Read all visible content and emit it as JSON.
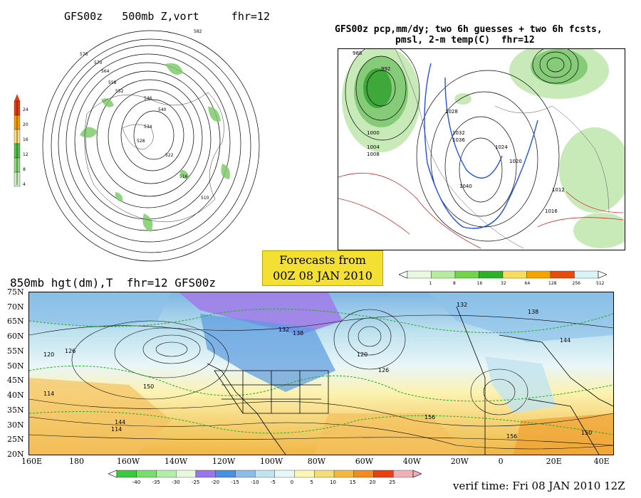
{
  "panels": {
    "top_left": {
      "title": "GFS00z   500mb Z,vort     fhr=12",
      "legend_ticks": [
        "24",
        "20",
        "16",
        "12",
        "8",
        "4"
      ],
      "legend_colors": [
        "#e04010",
        "#f4a000",
        "#f6dd80",
        "#56c24a",
        "#8fd980",
        "#c9ecc0"
      ],
      "contour_labels": [
        "582",
        "576",
        "570",
        "564",
        "558",
        "552",
        "546",
        "540",
        "534",
        "528",
        "522",
        "516",
        "510"
      ]
    },
    "top_right": {
      "title_line1": "GFS00z pcp,mm/dy; two 6h guesses + two 6h fcsts,",
      "title_line2": "pmsl, 2-m temp(C)  fhr=12",
      "legend_ticks": [
        "1",
        "8",
        "16",
        "32",
        "64",
        "128",
        "256",
        "512"
      ],
      "legend_colors": [
        "#e9f8e0",
        "#b8eba0",
        "#72d44e",
        "#2fb02a",
        "#f6dd60",
        "#f4a400",
        "#e84a10",
        "#d8f4f8"
      ],
      "pressure_labels": [
        "988",
        "992",
        "1000",
        "1004",
        "1008",
        "1012",
        "1016",
        "1020",
        "1024",
        "1028",
        "1032",
        "1036",
        "1040"
      ]
    },
    "forecast_box": {
      "line1": "Forecasts from",
      "line2": "00Z 08 JAN 2010"
    },
    "bottom": {
      "title": "850mb hgt(dm),T  fhr=12 GFS00z",
      "y_ticks": [
        "75N",
        "70N",
        "65N",
        "60N",
        "55N",
        "50N",
        "45N",
        "40N",
        "35N",
        "30N",
        "25N",
        "20N"
      ],
      "x_ticks": [
        "160E",
        "180",
        "160W",
        "140W",
        "120W",
        "100W",
        "80W",
        "60W",
        "40W",
        "20W",
        "0",
        "20E",
        "40E"
      ],
      "temp_legend_ticks": [
        "-40",
        "-35",
        "-30",
        "-25",
        "-20",
        "-15",
        "-10",
        "-5",
        "0",
        "5",
        "10",
        "15",
        "20",
        "25"
      ],
      "temp_legend_colors": [
        "#3cc83c",
        "#78dc6e",
        "#b4ecaa",
        "#e8f8e0",
        "#9878e8",
        "#4890e0",
        "#8cbce8",
        "#c0e4f0",
        "#e8f6f8",
        "#fcf6b4",
        "#f4dc78",
        "#f4b840",
        "#f08c20",
        "#e84010",
        "#f0b0b8"
      ],
      "height_labels": [
        "114",
        "120",
        "126",
        "132",
        "138",
        "144",
        "150",
        "156"
      ],
      "verif_time": "verif time: Fri 08 JAN 2010 12Z"
    }
  }
}
